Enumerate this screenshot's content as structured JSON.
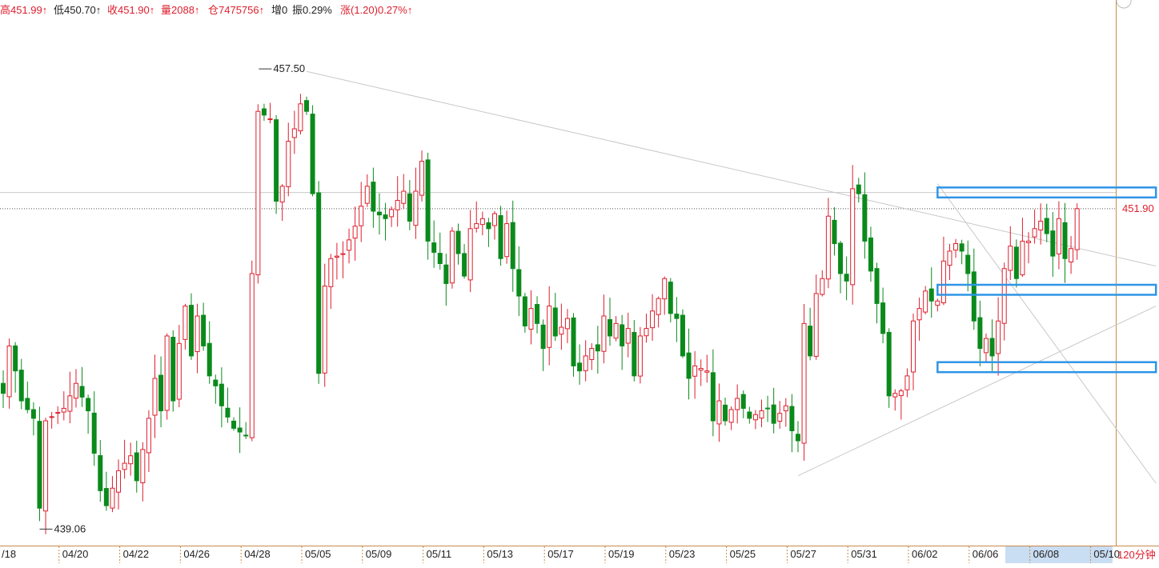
{
  "header": {
    "high_label": "高",
    "high_value": "451.99↑",
    "low_label": "低",
    "low_value": "450.70↑",
    "close_label": "收",
    "close_value": "451.90↑",
    "volume_label": "量",
    "volume_value": "2088↑",
    "oi_label": "仓",
    "oi_value": "7475756↑",
    "change_label": "增",
    "change_value": "0",
    "amplitude_label": "振",
    "amplitude_value": "0.29%",
    "rise_label": "涨",
    "rise_value": "(1.20)0.27%↑"
  },
  "colors": {
    "up": "#dd1f2e",
    "down": "#0b8a1c",
    "frame": "#c88a4a",
    "highlight": "#2f95e6",
    "trend": "#c8c8c8"
  },
  "chart_data": {
    "type": "candlestick",
    "title": "",
    "timeframe_label": "120分钟",
    "ylim": [
      438.4,
      459.3
    ],
    "max_label": "457.50",
    "min_label": "439.06",
    "last_price_label": "451.90",
    "last_price": 451.9,
    "resistance_line": 452.55,
    "x_ticks": [
      {
        "index": 0,
        "label": "/18"
      },
      {
        "index": 10,
        "label": "04/20"
      },
      {
        "index": 20,
        "label": "04/22"
      },
      {
        "index": 30,
        "label": "04/26"
      },
      {
        "index": 40,
        "label": "04/28"
      },
      {
        "index": 50,
        "label": "05/05"
      },
      {
        "index": 60,
        "label": "05/09"
      },
      {
        "index": 70,
        "label": "05/11"
      },
      {
        "index": 80,
        "label": "05/13"
      },
      {
        "index": 90,
        "label": "05/17"
      },
      {
        "index": 100,
        "label": "05/19"
      },
      {
        "index": 110,
        "label": "05/23"
      },
      {
        "index": 120,
        "label": "05/25"
      },
      {
        "index": 130,
        "label": "05/27"
      },
      {
        "index": 140,
        "label": "05/31"
      },
      {
        "index": 150,
        "label": "06/02"
      },
      {
        "index": 160,
        "label": "06/06"
      },
      {
        "index": 170,
        "label": "06/08"
      },
      {
        "index": 180,
        "label": "05/10"
      }
    ],
    "anchors": [
      [
        0,
        444.5
      ],
      [
        1,
        446.4
      ],
      [
        2,
        445.4
      ],
      [
        3,
        444.2
      ],
      [
        5,
        443.5
      ],
      [
        6,
        439.9
      ],
      [
        7,
        443.4
      ],
      [
        10,
        443.9
      ],
      [
        12,
        444.9
      ],
      [
        14,
        443.8
      ],
      [
        15,
        442.1
      ],
      [
        16,
        440.6
      ],
      [
        17,
        440.0
      ],
      [
        19,
        441.4
      ],
      [
        21,
        442.0
      ],
      [
        22,
        441.0
      ],
      [
        24,
        443.5
      ],
      [
        25,
        445.1
      ],
      [
        26,
        443.8
      ],
      [
        27,
        446.8
      ],
      [
        28,
        444.2
      ],
      [
        29,
        446.5
      ],
      [
        30,
        448.0
      ],
      [
        31,
        446.0
      ],
      [
        32,
        447.6
      ],
      [
        33,
        446.4
      ],
      [
        34,
        445.2
      ],
      [
        35,
        444.8
      ],
      [
        36,
        444.0
      ],
      [
        38,
        443.1
      ],
      [
        40,
        442.8
      ],
      [
        42,
        455.8
      ],
      [
        44,
        455.5
      ],
      [
        45,
        452.2
      ],
      [
        46,
        452.8
      ],
      [
        47,
        454.6
      ],
      [
        48,
        455.1
      ],
      [
        49,
        456.1
      ],
      [
        50,
        455.8
      ],
      [
        51,
        452.5
      ],
      [
        52,
        445.3
      ],
      [
        53,
        448.8
      ],
      [
        54,
        449.9
      ],
      [
        56,
        450.1
      ],
      [
        58,
        451.2
      ],
      [
        60,
        452.8
      ],
      [
        61,
        451.8
      ],
      [
        63,
        451.5
      ],
      [
        66,
        452.6
      ],
      [
        67,
        451.4
      ],
      [
        69,
        453.8
      ],
      [
        70,
        450.6
      ],
      [
        72,
        449.7
      ],
      [
        73,
        448.9
      ],
      [
        74,
        451.0
      ],
      [
        76,
        449.2
      ],
      [
        77,
        451.1
      ],
      [
        79,
        451.5
      ],
      [
        80,
        451.1
      ],
      [
        81,
        451.7
      ],
      [
        82,
        449.9
      ],
      [
        83,
        451.3
      ],
      [
        84,
        449.5
      ],
      [
        85,
        448.4
      ],
      [
        86,
        447.2
      ],
      [
        87,
        447.9
      ],
      [
        88,
        447.3
      ],
      [
        89,
        446.3
      ],
      [
        90,
        448.0
      ],
      [
        91,
        446.8
      ],
      [
        93,
        447.5
      ],
      [
        94,
        445.6
      ],
      [
        95,
        445.4
      ],
      [
        96,
        446.0
      ],
      [
        97,
        446.3
      ],
      [
        98,
        446.2
      ],
      [
        99,
        447.6
      ],
      [
        100,
        446.8
      ],
      [
        101,
        447.3
      ],
      [
        102,
        446.4
      ],
      [
        103,
        447.1
      ],
      [
        104,
        445.2
      ],
      [
        105,
        446.8
      ],
      [
        106,
        447.1
      ],
      [
        107,
        447.8
      ],
      [
        108,
        448.3
      ],
      [
        109,
        449.1
      ],
      [
        110,
        447.7
      ],
      [
        111,
        447.5
      ],
      [
        112,
        446.0
      ],
      [
        113,
        445.1
      ],
      [
        114,
        445.6
      ],
      [
        116,
        445.4
      ],
      [
        117,
        443.4
      ],
      [
        118,
        444.2
      ],
      [
        119,
        443.4
      ],
      [
        121,
        444.3
      ],
      [
        123,
        443.5
      ],
      [
        125,
        443.8
      ],
      [
        126,
        443.9
      ],
      [
        127,
        443.3
      ],
      [
        128,
        443.7
      ],
      [
        129,
        444.0
      ],
      [
        130,
        443.0
      ],
      [
        131,
        442.6
      ],
      [
        132,
        447.3
      ],
      [
        133,
        446.0
      ],
      [
        134,
        448.5
      ],
      [
        135,
        449.1
      ],
      [
        136,
        451.6
      ],
      [
        137,
        450.5
      ],
      [
        138,
        449.3
      ],
      [
        139,
        449.0
      ],
      [
        140,
        452.7
      ],
      [
        141,
        452.5
      ],
      [
        142,
        450.6
      ],
      [
        143,
        449.4
      ],
      [
        144,
        448.1
      ],
      [
        145,
        446.9
      ],
      [
        146,
        444.4
      ],
      [
        147,
        444.5
      ],
      [
        148,
        444.6
      ],
      [
        149,
        445.2
      ],
      [
        150,
        447.4
      ],
      [
        151,
        447.9
      ],
      [
        152,
        448.6
      ],
      [
        153,
        448.2
      ],
      [
        154,
        448.2
      ],
      [
        155,
        449.8
      ],
      [
        156,
        450.2
      ],
      [
        157,
        450.5
      ],
      [
        158,
        450.2
      ],
      [
        159,
        449.3
      ],
      [
        160,
        447.4
      ],
      [
        161,
        446.3
      ],
      [
        162,
        446.7
      ],
      [
        163,
        446.0
      ],
      [
        164,
        447.4
      ],
      [
        165,
        449.5
      ],
      [
        166,
        450.4
      ],
      [
        167,
        449.1
      ],
      [
        168,
        450.6
      ],
      [
        169,
        450.6
      ],
      [
        170,
        451.1
      ],
      [
        171,
        451.4
      ],
      [
        172,
        450.9
      ],
      [
        173,
        450.0
      ],
      [
        174,
        451.5
      ],
      [
        175,
        449.9
      ],
      [
        176,
        450.3
      ],
      [
        177,
        451.9
      ]
    ],
    "annotations": [
      {
        "label": "resistance-zone",
        "from_index": 154,
        "to_index": 190,
        "low": 452.35,
        "high": 452.75
      },
      {
        "label": "middle-zone",
        "from_index": 154,
        "to_index": 190,
        "low": 448.45,
        "high": 448.85
      },
      {
        "label": "support-zone",
        "from_index": 154,
        "to_index": 190,
        "low": 445.35,
        "high": 445.75
      }
    ],
    "trendlines": [
      {
        "label": "falling-line",
        "from": [
          50,
          457.4
        ],
        "to": [
          190,
          449.6
        ]
      },
      {
        "label": "falling-line-2",
        "from": [
          154,
          452.9
        ],
        "to": [
          190,
          440.9
        ]
      },
      {
        "label": "rising-line",
        "from": [
          131,
          441.2
        ],
        "to": [
          190,
          448.0
        ]
      }
    ]
  }
}
